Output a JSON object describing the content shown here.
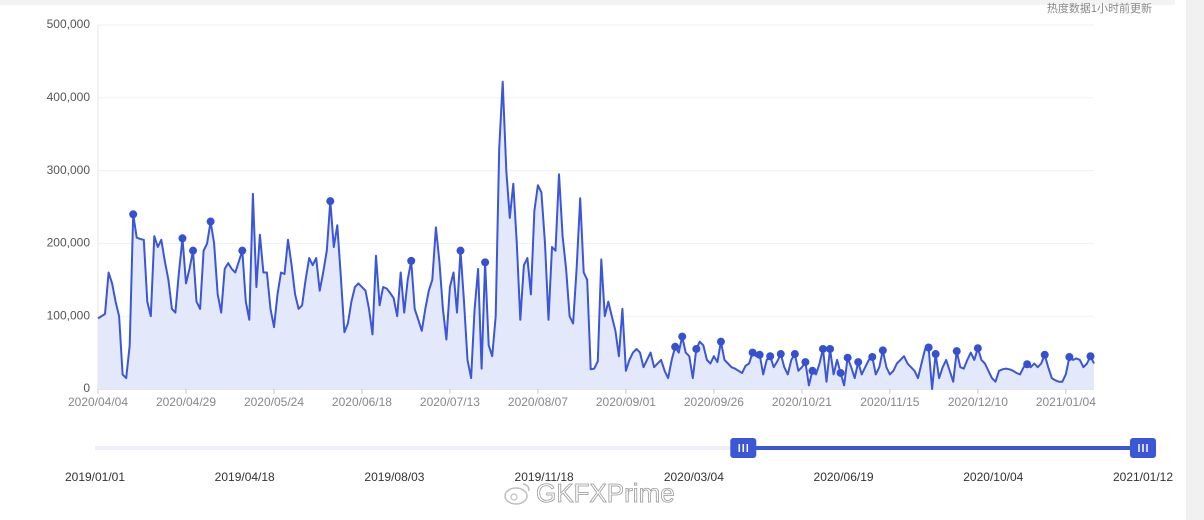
{
  "chart_data": {
    "type": "line",
    "note": "热度数据1小时前更新",
    "watermark": "GKFXPrime",
    "categories": [
      "2020/04/04",
      null,
      null,
      null,
      null,
      null,
      null,
      null,
      null,
      null,
      null,
      null,
      null,
      null,
      null,
      null,
      null,
      null,
      null,
      null,
      null,
      null,
      null,
      null,
      null,
      "2020/04/29",
      null,
      null,
      null,
      null,
      null,
      null,
      null,
      null,
      null,
      null,
      null,
      null,
      null,
      null,
      null,
      null,
      null,
      null,
      null,
      null,
      null,
      null,
      null,
      null,
      "2020/05/24",
      null,
      null,
      null,
      null,
      null,
      null,
      null,
      null,
      null,
      null,
      null,
      null,
      null,
      null,
      null,
      null,
      null,
      null,
      null,
      null,
      null,
      null,
      null,
      null,
      "2020/06/18",
      null,
      null,
      null,
      null,
      null,
      null,
      null,
      null,
      null,
      null,
      null,
      null,
      null,
      null,
      null,
      null,
      null,
      null,
      null,
      null,
      null,
      null,
      null,
      null,
      "2020/07/13",
      null,
      null,
      null,
      null,
      null,
      null,
      null,
      null,
      null,
      null,
      null,
      null,
      null,
      null,
      null,
      null,
      null,
      null,
      null,
      null,
      null,
      null,
      null,
      null,
      "2020/08/07",
      null,
      null,
      null,
      null,
      null,
      null,
      null,
      null,
      null,
      null,
      null,
      null,
      null,
      null,
      null,
      null,
      null,
      null,
      null,
      null,
      null,
      null,
      null,
      null,
      "2020/09/01",
      null,
      null,
      null,
      null,
      null,
      null,
      null,
      null,
      null,
      null,
      null,
      null,
      null,
      null,
      null,
      null,
      null,
      null,
      null,
      null,
      null,
      null,
      null,
      null,
      "2020/09/26",
      null,
      null,
      null,
      null,
      null,
      null,
      null,
      null,
      null,
      null,
      null,
      null,
      null,
      null,
      null,
      null,
      null,
      null,
      null,
      null,
      null,
      null,
      null,
      null,
      "2020/10/21",
      null,
      null,
      null,
      null,
      null,
      null,
      null,
      null,
      null,
      null,
      null,
      null,
      null,
      null,
      null,
      null,
      null,
      null,
      null,
      null,
      null,
      null,
      null,
      null,
      "2020/11/15",
      null,
      null,
      null,
      null,
      null,
      null,
      null,
      null,
      null,
      null,
      null,
      null,
      null,
      null,
      null,
      null,
      null,
      null,
      null,
      null,
      null,
      null,
      null,
      null,
      "2020/12/10",
      null,
      null,
      null,
      null,
      null,
      null,
      null,
      null,
      null,
      null,
      null,
      null,
      null,
      null,
      null,
      null,
      null,
      null,
      null,
      null,
      null,
      null,
      null,
      null,
      "2021/01/04",
      null,
      null,
      null,
      null,
      null,
      null,
      null,
      null
    ],
    "series": [
      {
        "color": "#3b56d8",
        "area": "#e3e9fb",
        "values": [
          97000,
          100000,
          103000,
          160000,
          145000,
          120000,
          100000,
          20000,
          15000,
          60000,
          240000,
          208000,
          206000,
          205000,
          120000,
          100000,
          210000,
          195000,
          205000,
          175000,
          150000,
          110000,
          105000,
          160000,
          207000,
          145000,
          165000,
          190000,
          120000,
          110000,
          190000,
          200000,
          230000,
          200000,
          130000,
          105000,
          165000,
          173000,
          165000,
          160000,
          175000,
          190000,
          120000,
          95000,
          268000,
          140000,
          212000,
          160000,
          160000,
          110000,
          85000,
          130000,
          160000,
          158000,
          205000,
          170000,
          130000,
          110000,
          115000,
          150000,
          180000,
          170000,
          180000,
          135000,
          160000,
          190000,
          258000,
          195000,
          225000,
          155000,
          78000,
          90000,
          120000,
          140000,
          145000,
          140000,
          135000,
          110000,
          75000,
          183000,
          115000,
          140000,
          138000,
          132000,
          125000,
          100000,
          160000,
          105000,
          150000,
          176000,
          110000,
          95000,
          80000,
          110000,
          135000,
          150000,
          222000,
          175000,
          110000,
          68000,
          140000,
          160000,
          105000,
          190000,
          120000,
          40000,
          15000,
          110000,
          165000,
          28000,
          174000,
          60000,
          45000,
          100000,
          330000,
          422000,
          300000,
          235000,
          282000,
          200000,
          95000,
          170000,
          180000,
          130000,
          245000,
          280000,
          270000,
          200000,
          95000,
          195000,
          190000,
          295000,
          210000,
          165000,
          100000,
          90000,
          165000,
          262000,
          160000,
          150000,
          27000,
          28000,
          38000,
          178000,
          100000,
          120000,
          100000,
          80000,
          45000,
          110000,
          25000,
          40000,
          50000,
          55000,
          50000,
          30000,
          40000,
          50000,
          30000,
          35000,
          40000,
          25000,
          15000,
          40000,
          58000,
          50000,
          72000,
          50000,
          45000,
          15000,
          55000,
          65000,
          60000,
          40000,
          35000,
          45000,
          37000,
          65000,
          40000,
          35000,
          30000,
          28000,
          25000,
          22000,
          32000,
          35000,
          50000,
          45000,
          47000,
          20000,
          40000,
          45000,
          30000,
          38000,
          48000,
          30000,
          20000,
          40000,
          48000,
          25000,
          30000,
          37000,
          5000,
          25000,
          20000,
          35000,
          55000,
          10000,
          55000,
          20000,
          40000,
          22000,
          5000,
          43000,
          30000,
          15000,
          37000,
          20000,
          30000,
          40000,
          44000,
          20000,
          30000,
          53000,
          30000,
          20000,
          25000,
          35000,
          40000,
          45000,
          35000,
          30000,
          25000,
          15000,
          35000,
          55000,
          57000,
          0,
          48000,
          15000,
          30000,
          40000,
          25000,
          10000,
          52000,
          30000,
          28000,
          40000,
          50000,
          40000,
          56000,
          40000,
          35000,
          25000,
          15000,
          10000,
          25000,
          27000,
          28000,
          27000,
          25000,
          22000,
          20000,
          30000,
          34000,
          30000,
          35000,
          30000,
          35000,
          47000,
          30000,
          15000,
          12000,
          10000,
          10000,
          20000,
          44000,
          40000,
          42000,
          40000,
          30000,
          35000,
          45000,
          35000
        ]
      },
      {
        "color": "#3550d2",
        "symbol": "circle",
        "x": [
          "2020/04/14",
          "2020/04/28",
          "2020/05/01",
          "2020/05/06",
          "2020/05/15",
          "2020/06/09",
          "2020/07/02",
          "2020/07/16",
          "2020/07/23",
          "2020/09/15",
          "2020/09/17",
          "2020/09/21",
          "2020/09/28",
          "2020/10/07",
          "2020/10/09",
          "2020/10/12",
          "2020/10/15",
          "2020/10/19",
          "2020/10/22",
          "2020/10/24",
          "2020/10/27",
          "2020/10/29",
          "2020/11/01",
          "2020/11/03",
          "2020/11/06",
          "2020/11/10",
          "2020/11/13",
          "2020/11/26",
          "2020/11/28",
          "2020/12/04",
          "2020/12/10",
          "2020/12/24",
          "2020/12/29",
          "2021/01/05",
          "2021/01/11"
        ],
        "values": [
          240000,
          207000,
          190000,
          230000,
          190000,
          258000,
          176000,
          190000,
          174000,
          58000,
          72000,
          55000,
          65000,
          50000,
          47000,
          45000,
          48000,
          48000,
          37000,
          25000,
          55000,
          55000,
          22000,
          43000,
          37000,
          44000,
          53000,
          57000,
          48000,
          52000,
          56000,
          34000,
          47000,
          44000,
          45000
        ]
      }
    ],
    "ylim": [
      0,
      500000
    ],
    "yticks": [
      0,
      {
        "value": 100000,
        "label": "100,000"
      },
      {
        "value": 200000,
        "label": "200,000"
      },
      {
        "value": 300000,
        "label": "300,000"
      },
      {
        "value": 400000,
        "label": "400,000"
      },
      {
        "value": 500000,
        "label": "500,000"
      }
    ],
    "grid": true,
    "slider": {
      "labels": [
        "2019/01/01",
        "2019/04/18",
        "2019/08/03",
        "2019/11/18",
        "2020/03/04",
        "2020/06/19",
        "2020/10/04",
        "2021/01/12"
      ]
    }
  }
}
